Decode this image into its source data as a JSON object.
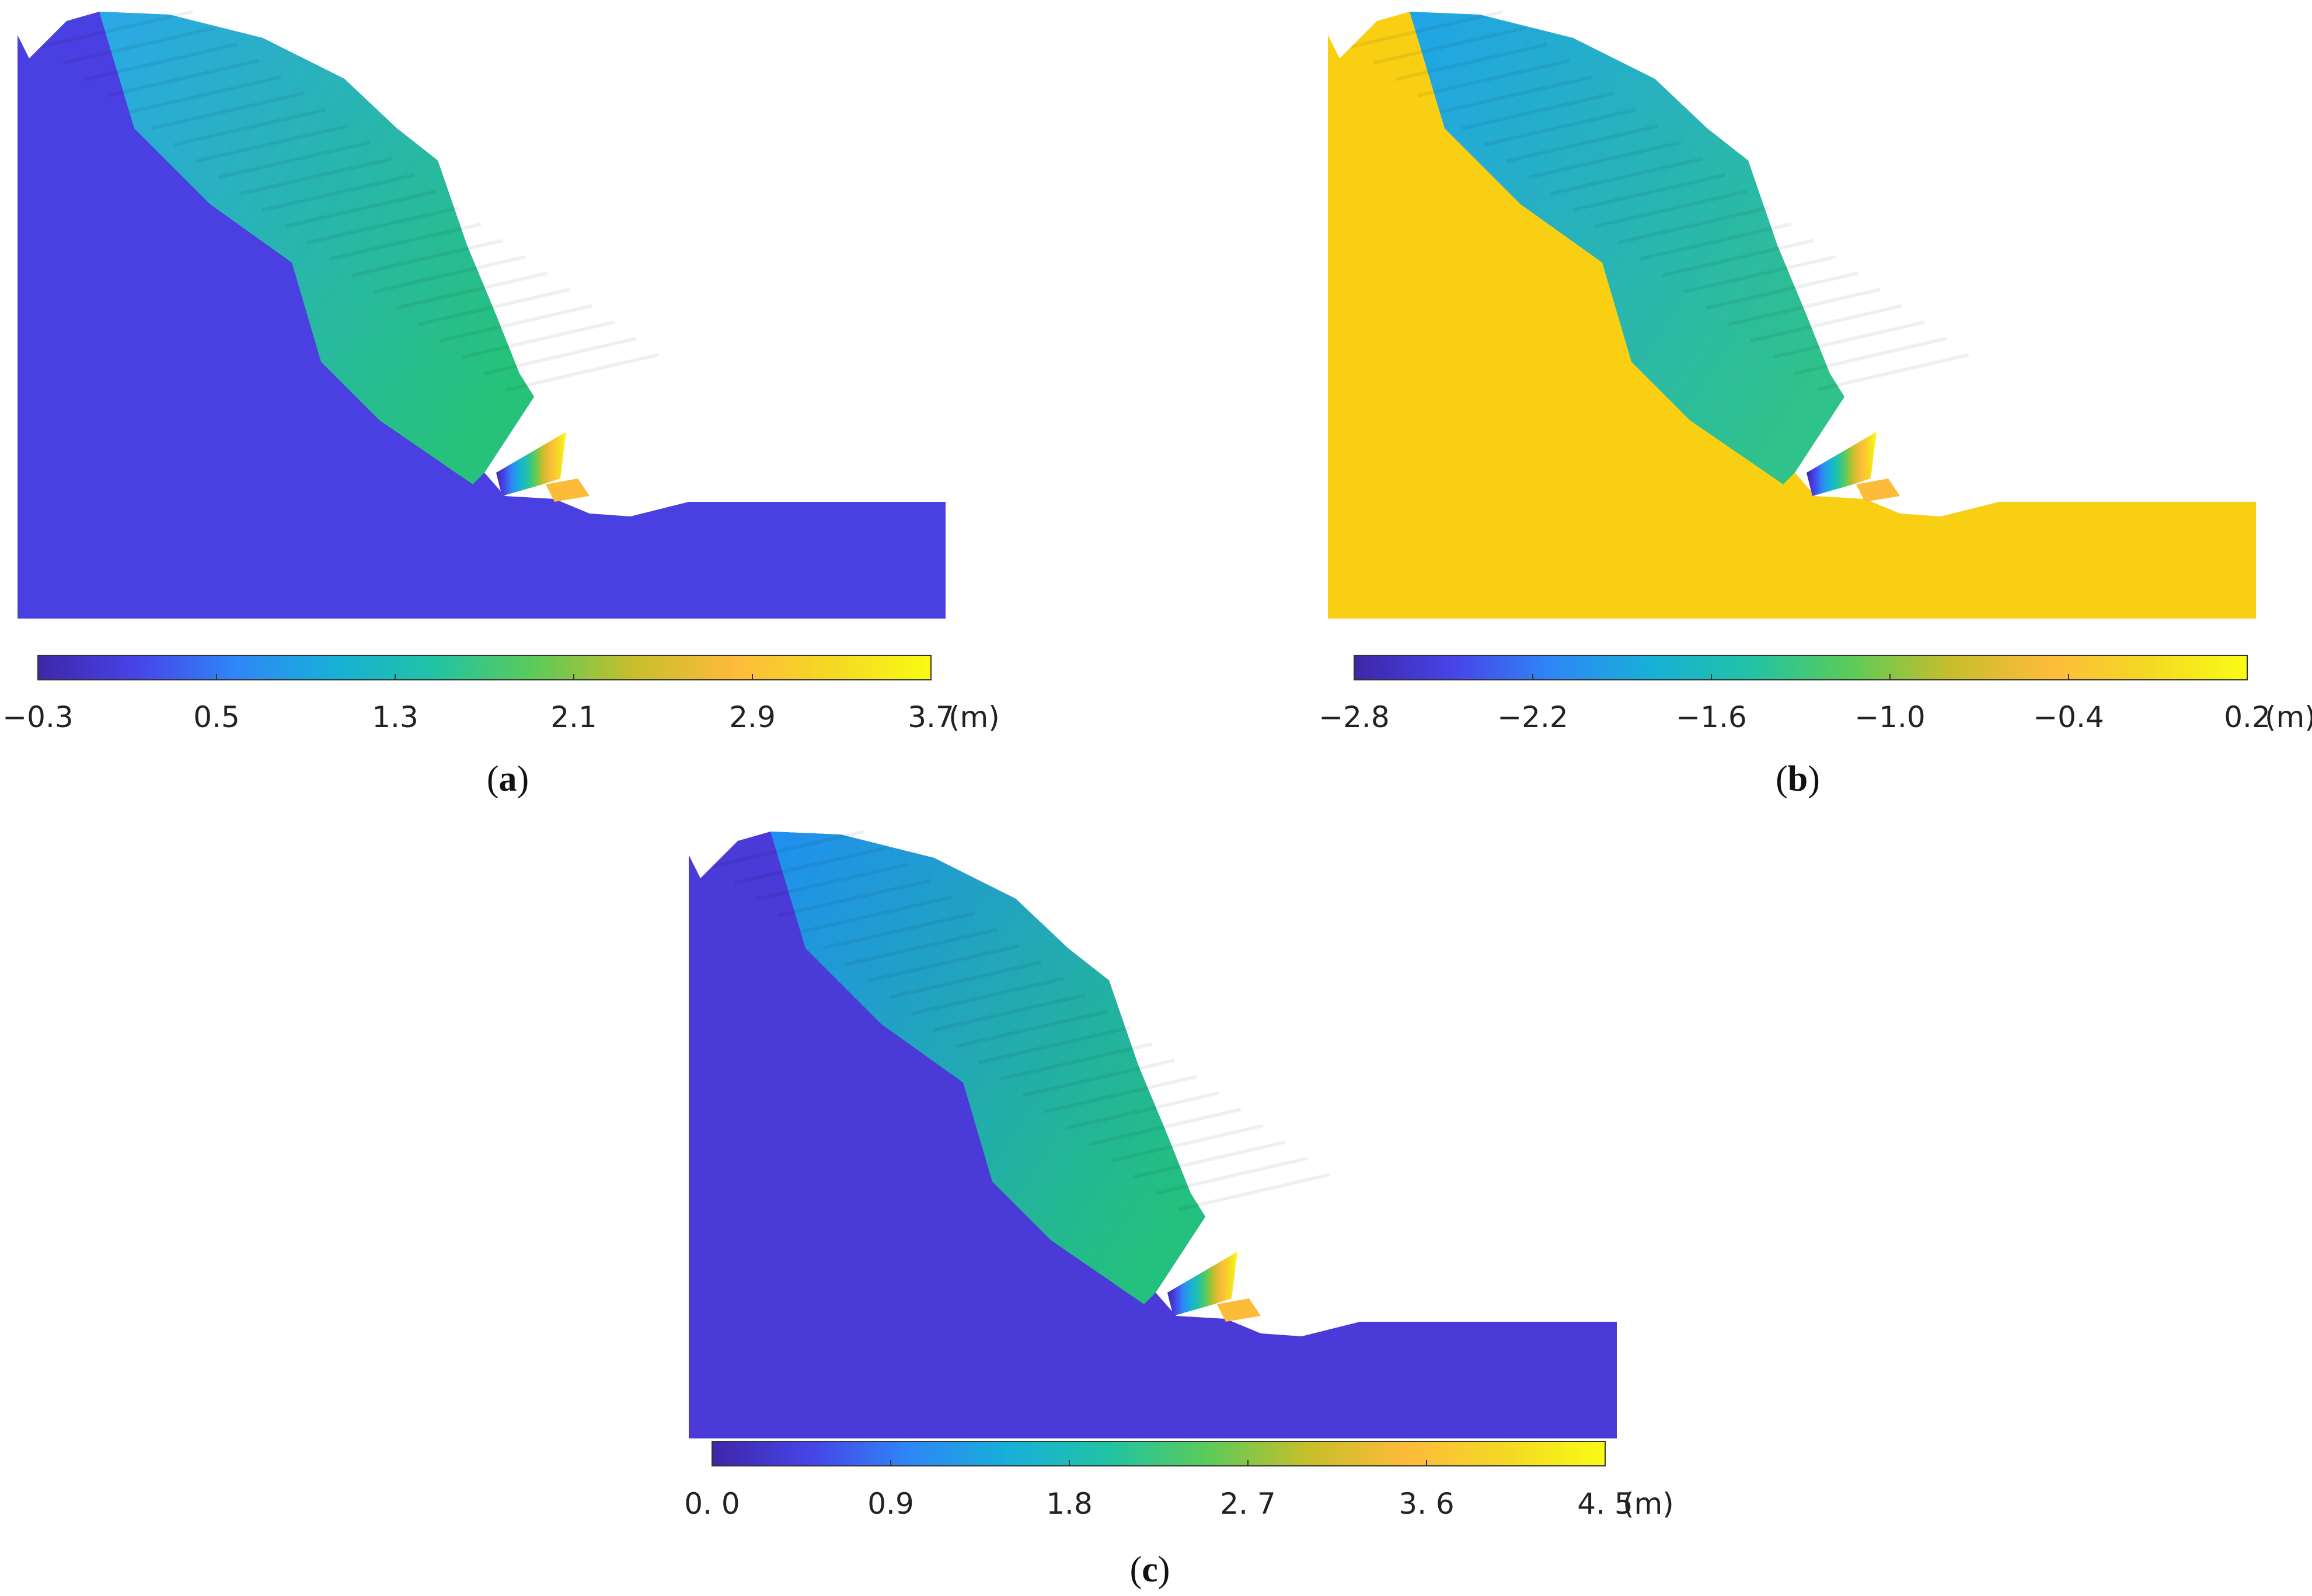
{
  "panels": [
    {
      "caption": {
        "open": "(",
        "letter": "a",
        "close": ")"
      },
      "field": "uniform",
      "colorbar": {
        "min": -0.3,
        "max": 3.7,
        "tick_labels": [
          "−0.3",
          "0.5",
          "1.3",
          "2.1",
          "2.9",
          "3.7"
        ],
        "unit": "(m)"
      },
      "body_color": "#4a3fe0",
      "cap_color_top": "#2aa8e8",
      "cap_color_crown": "#27c27a"
    },
    {
      "caption": {
        "open": "(",
        "letter": "b",
        "close": ")"
      },
      "field": "inverted",
      "colorbar": {
        "min": -2.8,
        "max": 0.2,
        "tick_labels": [
          "−2.8",
          "−2.2",
          "−1.6",
          "−1.0",
          "−0.4",
          "0.2"
        ],
        "unit": "(m)"
      },
      "body_color": "#f9cf14",
      "cap_color_top": "#20a4e8",
      "cap_color_crown": "#2fc28a"
    },
    {
      "caption": {
        "open": "(",
        "letter": "c",
        "close": ")"
      },
      "field": "uniform",
      "colorbar": {
        "min": 0.0,
        "max": 4.5,
        "tick_labels": [
          "0. 0",
          "0.9",
          "1.8",
          "2. 7",
          "3. 6",
          "4. 5"
        ],
        "unit": "(m)"
      },
      "body_color": "#4a3ad8",
      "cap_color_top": "#1f8ff0",
      "cap_color_crown": "#24c07e"
    }
  ],
  "colormap": [
    "#3e26a8",
    "#4744e8",
    "#2e87f6",
    "#17b0d8",
    "#21c3a5",
    "#5ccb58",
    "#c7be2c",
    "#fdbb3a",
    "#f4d924",
    "#f9fb14"
  ]
}
